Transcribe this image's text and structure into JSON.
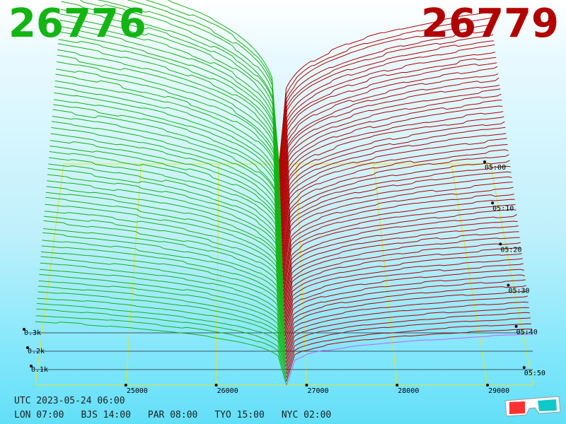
{
  "header": {
    "bid_price": "26776",
    "ask_price": "26779"
  },
  "colors": {
    "bid": "#13b513",
    "ask": "#b20000",
    "frame": "#e4e42a",
    "depth_baseline": "#3a5560",
    "ask_edge": "#c060ff"
  },
  "chart_data": {
    "type": "3d-order-book-depth",
    "price_axis": {
      "ticks": [
        25000,
        26000,
        27000,
        28000,
        29000
      ],
      "range": [
        24000,
        29500
      ]
    },
    "volume_axis": {
      "ticks": [
        "0.1k",
        "0.2k",
        "0.3k"
      ]
    },
    "time_axis": {
      "ticks": [
        "05:00",
        "05:10",
        "05:20",
        "05:30",
        "05:40",
        "05:50"
      ]
    },
    "snapshots": 60,
    "bid_price": 26776,
    "ask_price": 26779
  },
  "footer": {
    "utc": "UTC 2023-05-24 06:00",
    "zones": [
      "LON 07:00",
      "BJS 14:00",
      "PAR 08:00",
      "TYO 15:00",
      "NYC 02:00"
    ]
  },
  "icons": {
    "glasses": "3d-glasses-icon"
  }
}
